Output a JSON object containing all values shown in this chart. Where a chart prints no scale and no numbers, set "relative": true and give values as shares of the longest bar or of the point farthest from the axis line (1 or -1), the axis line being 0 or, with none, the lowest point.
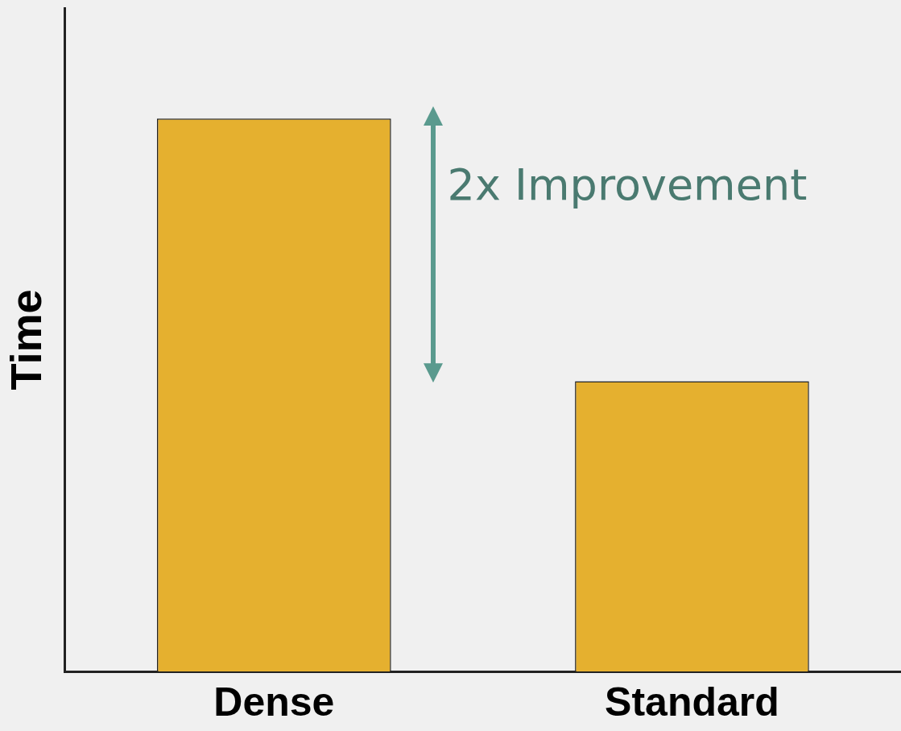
{
  "chart_data": {
    "type": "bar",
    "relative": true,
    "ylabel": "Time",
    "categories": [
      "Dense",
      "Standard"
    ],
    "values": [
      1,
      0.525
    ],
    "color": "#e5b02f",
    "annotations": [
      "2x Improvement"
    ],
    "grid": false,
    "legend": false
  }
}
